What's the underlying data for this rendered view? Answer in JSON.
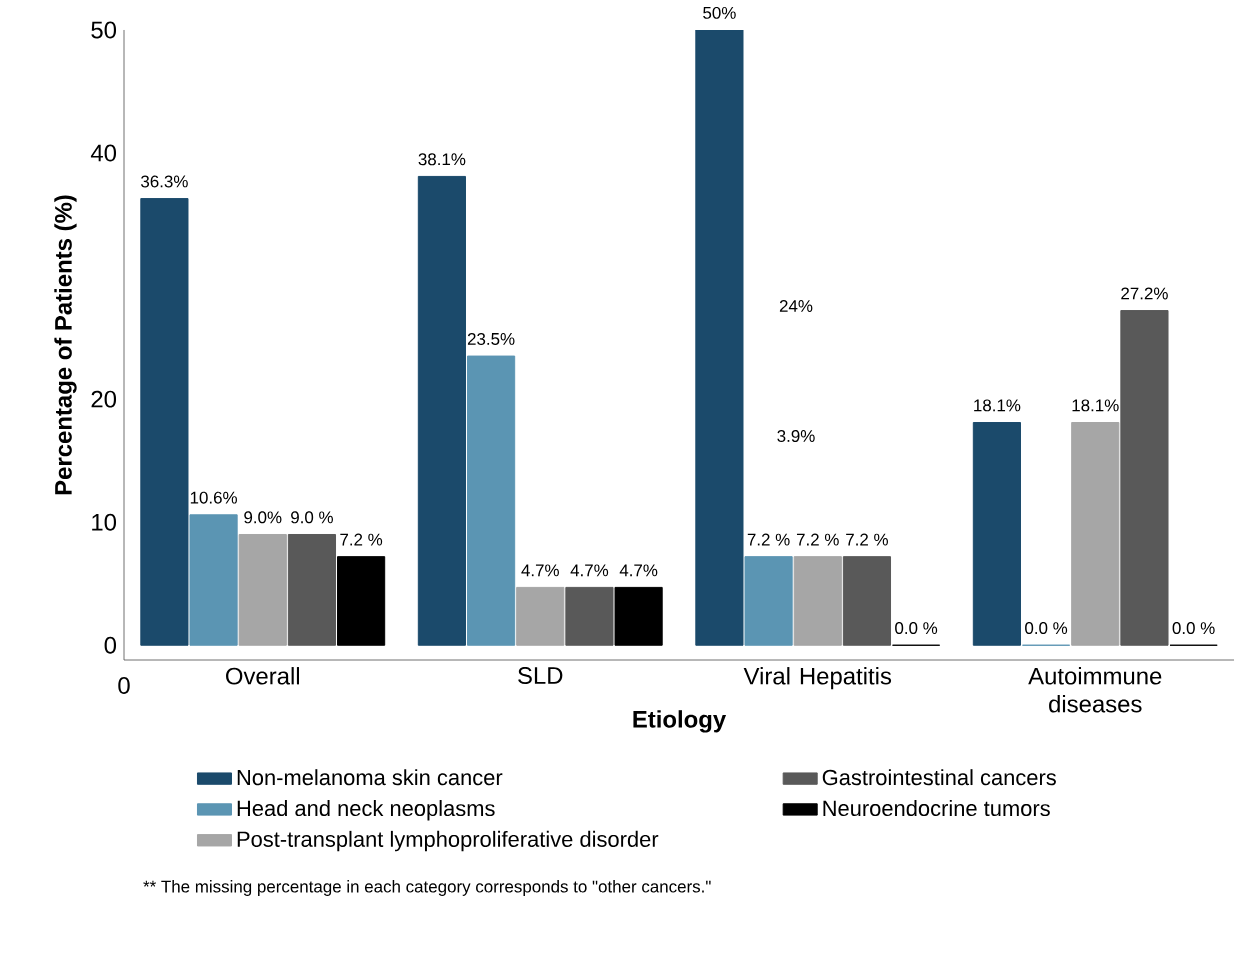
{
  "chart_data": {
    "type": "bar",
    "xlabel": "Etiology",
    "ylabel": "Percentage of Patients (%)",
    "categories": [
      "Overall",
      "SLD",
      "Viral Hepatitis",
      "Autoimmune diseases"
    ],
    "series": [
      {
        "name": "Non-melanoma skin cancer",
        "color": "#1b4a6b",
        "values": [
          36.3,
          38.1,
          50,
          18.1
        ],
        "value_labels": [
          "36.3%",
          "38.1%",
          "50%",
          "18.1%"
        ]
      },
      {
        "name": "Head and neck neoplasms",
        "color": "#5b95b3",
        "values": [
          10.6,
          23.5,
          7.2,
          0.0
        ],
        "value_labels": [
          "10.6%",
          "23.5%",
          "7.2 %",
          "0.0 %"
        ]
      },
      {
        "name": "Post-transplant lymphoproliferative disorder",
        "color": "#a6a6a6",
        "values": [
          9.0,
          4.7,
          7.2,
          18.1
        ],
        "value_labels": [
          "9.0%",
          "4.7%",
          "7.2 %",
          "18.1%"
        ]
      },
      {
        "name": "Gastrointestinal cancers",
        "color": "#595959",
        "values": [
          9.0,
          4.7,
          7.2,
          27.2
        ],
        "value_labels": [
          "9.0 %",
          "4.7%",
          "7.2 %",
          "27.2%"
        ]
      },
      {
        "name": "Neuroendocrine tumors",
        "color": "#000000",
        "values": [
          7.2,
          4.7,
          0.0,
          0.0
        ],
        "value_labels": [
          "7.2 %",
          "4.7%",
          "0.0 %",
          "0.0 %"
        ]
      }
    ],
    "ylim": [
      -1.2,
      50
    ],
    "yticks": [
      0,
      10,
      20,
      40,
      50
    ],
    "grid": false,
    "legend": "bottom",
    "annotations": [
      "24%",
      "3.9%",
      "0",
      "** The missing percentage in each category corresponds to \"other cancers.\""
    ]
  }
}
